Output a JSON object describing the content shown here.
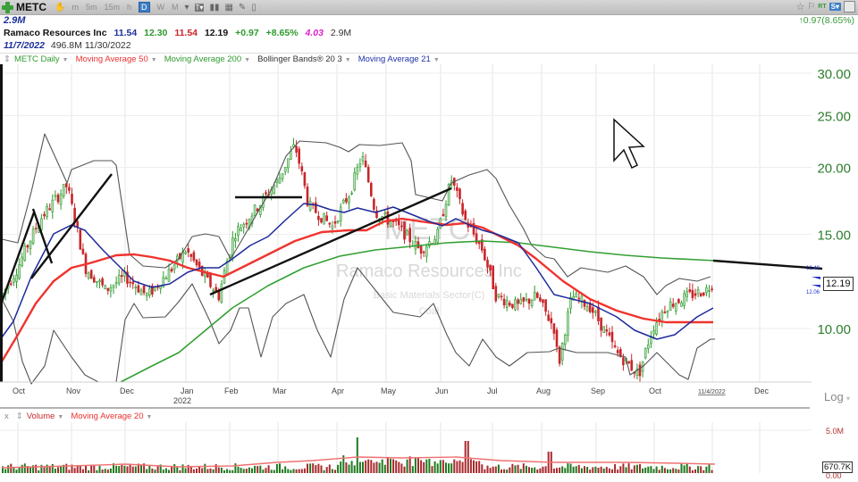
{
  "toolbar": {
    "symbol": "METC",
    "intervals": [
      {
        "label": "m",
        "active": false
      },
      {
        "label": "5m",
        "active": false
      },
      {
        "label": "15m",
        "active": false
      },
      {
        "label": "h",
        "active": false
      },
      {
        "label": "D",
        "active": true
      },
      {
        "label": "W",
        "active": false
      },
      {
        "label": "M",
        "active": false
      }
    ],
    "right_icons": [
      "star-icon",
      "flag-icon",
      "RT",
      "S",
      "save-icon"
    ],
    "rt_label": "RT",
    "s_label": "S▾"
  },
  "header": {
    "volume": "2.9M",
    "company": "Ramaco Resources Inc",
    "open": "11.54",
    "high": "12.30",
    "low": "11.54",
    "close": "12.19",
    "change": "+0.97",
    "change_pct": "+8.65%",
    "range": "4.03",
    "vol": "2.9M",
    "date": "11/7/2022",
    "market_cap": "496.8M",
    "next_date": "11/30/2022",
    "change_right": "↑0.97(8.65%)"
  },
  "legend": [
    {
      "label": "METC Daily",
      "color": "#2e9a2e"
    },
    {
      "label": "Moving Average 50",
      "color": "#e8322e"
    },
    {
      "label": "Moving Average 200",
      "color": "#2e9a2e"
    },
    {
      "label": "Bollinger Bands® 20 3",
      "color": "#333333"
    },
    {
      "label": "Moving Average 21",
      "color": "#2233aa"
    }
  ],
  "volume_legend": {
    "close": "x",
    "items": [
      {
        "label": "Volume",
        "color": "#e8322e"
      },
      {
        "label": "Moving Average 20",
        "color": "#e8322e"
      }
    ]
  },
  "watermark": {
    "symbol": "METC",
    "company": "Ramaco Resources Inc",
    "sector": "Basic Materials Sector(C)",
    "industry": "Coal"
  },
  "price_axis": {
    "ticks": [
      "30.00",
      "25.00",
      "20.00",
      "15.00",
      "10.00"
    ],
    "last_price": "12.19",
    "ma21_label": "12.06",
    "trend_label": "12.49",
    "scale": "Log"
  },
  "volume_axis": {
    "ticks": [
      "5.0M"
    ],
    "last_volume": "670.7K"
  },
  "time_axis": {
    "labels": [
      "Oct",
      "Nov",
      "Dec",
      "Jan",
      "Feb",
      "Mar",
      "Apr",
      "May",
      "Jun",
      "Jul",
      "Aug",
      "Sep",
      "Oct",
      "11/4/2022",
      "Dec"
    ],
    "year_label": "2022"
  },
  "colors": {
    "up": "#2e9a2e",
    "down": "#c8262a",
    "ma50": "#f0332e",
    "ma200": "#33a033",
    "ma21": "#1c2a9c",
    "bb": "#555555",
    "trend": "#111111"
  },
  "chart_data": {
    "type": "candlestick",
    "title": "METC Daily",
    "ylim": [
      7,
      31
    ],
    "yscale": "log",
    "months": [
      "Oct 2021",
      "Nov",
      "Dec",
      "Jan 2022",
      "Feb",
      "Mar",
      "Apr",
      "May",
      "Jun",
      "Jul",
      "Aug",
      "Sep",
      "Oct",
      "Nov"
    ],
    "approx_monthly_close": [
      12.5,
      14.5,
      11.8,
      13.5,
      13.0,
      18.0,
      16.0,
      15.5,
      16.5,
      11.5,
      11.0,
      8.8,
      10.5,
      12.19
    ],
    "last": {
      "open": 11.54,
      "high": 12.3,
      "low": 11.54,
      "close": 12.19
    }
  }
}
